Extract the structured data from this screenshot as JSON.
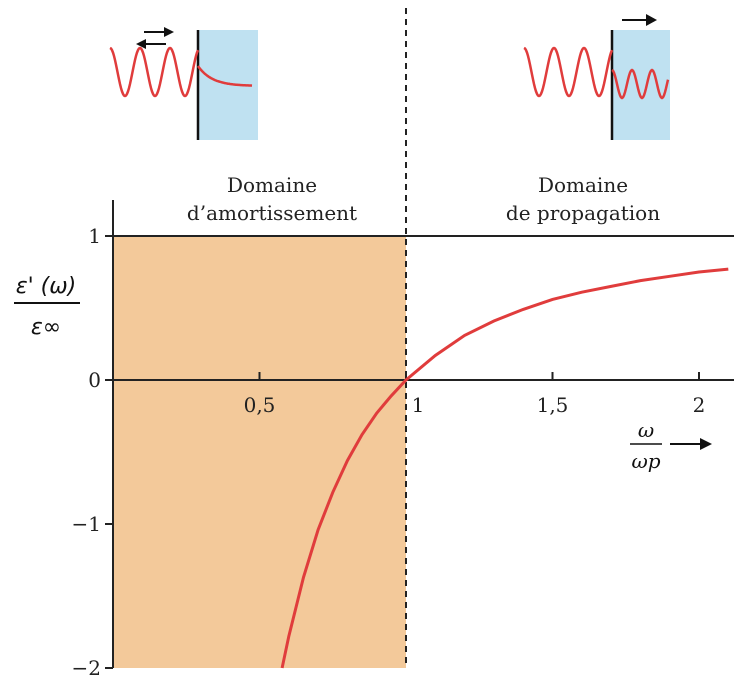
{
  "chart_data": {
    "type": "line",
    "xlim": [
      0,
      2.1
    ],
    "ylim": [
      -2,
      1
    ],
    "x_ticks": [
      {
        "value": 0.5,
        "label": "0,5"
      },
      {
        "value": 1,
        "label": "1"
      },
      {
        "value": 1.5,
        "label": "1,5"
      },
      {
        "value": 2,
        "label": "2"
      }
    ],
    "y_ticks": [
      {
        "value": 1,
        "label": "1"
      },
      {
        "value": 0,
        "label": "0"
      },
      {
        "value": -1,
        "label": "−1"
      },
      {
        "value": -2,
        "label": "−2"
      }
    ],
    "ylabel": {
      "numerator": "ε' (ω)",
      "denominator": "ε∞"
    },
    "xlabel": {
      "numerator": "ω",
      "denominator": "ωp"
    },
    "regions": [
      {
        "label_lines": [
          "Domaine",
          "d’amortissement"
        ],
        "x_range": [
          0,
          1
        ],
        "fill": "#f3c99a"
      },
      {
        "label_lines": [
          "Domaine",
          "de propagation"
        ],
        "x_range": [
          1,
          2.1
        ],
        "fill": "#ffffff"
      }
    ],
    "series": [
      {
        "color": "#e03c3c",
        "points": [
          [
            0.577,
            -2.0
          ],
          [
            0.6,
            -1.78
          ],
          [
            0.65,
            -1.37
          ],
          [
            0.7,
            -1.04
          ],
          [
            0.75,
            -0.78
          ],
          [
            0.8,
            -0.56
          ],
          [
            0.85,
            -0.38
          ],
          [
            0.9,
            -0.23
          ],
          [
            0.95,
            -0.11
          ],
          [
            1.0,
            0.0
          ],
          [
            1.1,
            0.17
          ],
          [
            1.2,
            0.31
          ],
          [
            1.3,
            0.41
          ],
          [
            1.4,
            0.49
          ],
          [
            1.5,
            0.56
          ],
          [
            1.6,
            0.61
          ],
          [
            1.7,
            0.65
          ],
          [
            1.8,
            0.69
          ],
          [
            1.9,
            0.72
          ],
          [
            2.0,
            0.75
          ],
          [
            2.1,
            0.77
          ]
        ]
      }
    ],
    "reference_line": {
      "y": 1
    },
    "divider_x": 1
  },
  "insets": [
    {
      "side": "left",
      "arrow": "double",
      "wave_color": "#e03c3c",
      "medium_color": "#bfe1f1"
    },
    {
      "side": "right",
      "arrow": "right",
      "wave_color": "#e03c3c",
      "medium_color": "#bfe1f1"
    }
  ]
}
